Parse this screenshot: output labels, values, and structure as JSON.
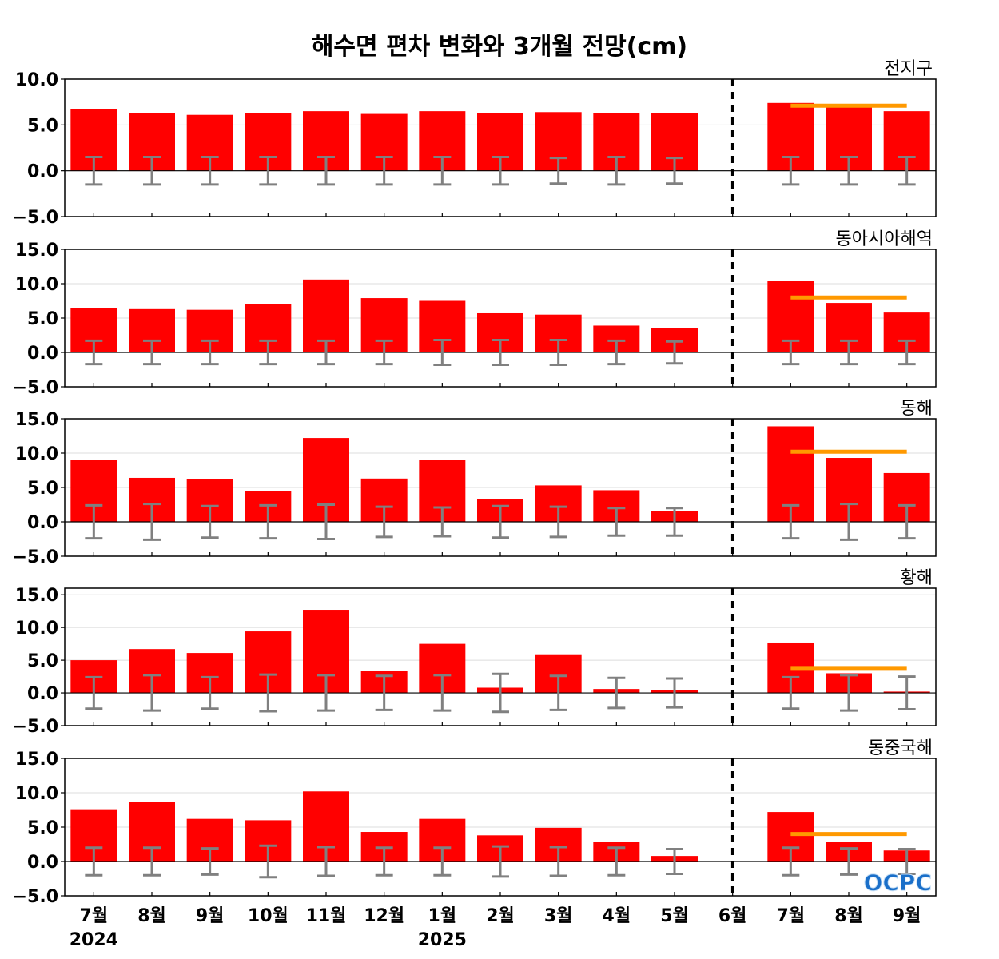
{
  "title": "해수면 편차 변화와 3개월 전망(cm)",
  "logo_text": "OCPC",
  "colors": {
    "bar": "#ff0000",
    "error_bar": "#808080",
    "forecast_line": "#ff9900",
    "divider": "#000000"
  },
  "chart_data": [
    {
      "type": "bar",
      "title": "전지구",
      "categories": [
        "7월",
        "8월",
        "9월",
        "10월",
        "11월",
        "12월",
        "1월",
        "2월",
        "3월",
        "4월",
        "5월",
        "6월",
        "7월",
        "8월",
        "9월"
      ],
      "year_labels": [
        {
          "index": 0,
          "label": "2024"
        },
        {
          "index": 6,
          "label": "2025"
        }
      ],
      "values": [
        6.7,
        6.3,
        6.1,
        6.3,
        6.5,
        6.2,
        6.5,
        6.3,
        6.4,
        6.3,
        6.3,
        0.0,
        7.4,
        7.0,
        6.5
      ],
      "error": [
        1.5,
        1.5,
        1.5,
        1.5,
        1.5,
        1.5,
        1.5,
        1.5,
        1.4,
        1.5,
        1.4,
        null,
        1.5,
        1.5,
        1.5
      ],
      "forecast": {
        "value": 7.1,
        "from": "7월",
        "to": "9월"
      },
      "ylim": [
        -5,
        10
      ],
      "yticks": [
        "10.0",
        "5.0",
        "0.0",
        "−5.0"
      ],
      "divider_after": "5월"
    },
    {
      "type": "bar",
      "title": "동아시아해역",
      "categories": [
        "7월",
        "8월",
        "9월",
        "10월",
        "11월",
        "12월",
        "1월",
        "2월",
        "3월",
        "4월",
        "5월",
        "6월",
        "7월",
        "8월",
        "9월"
      ],
      "values": [
        6.5,
        6.3,
        6.2,
        7.0,
        10.6,
        7.9,
        7.5,
        5.7,
        5.5,
        3.9,
        3.5,
        0.0,
        10.4,
        7.2,
        5.8
      ],
      "error": [
        1.7,
        1.7,
        1.7,
        1.7,
        1.7,
        1.7,
        1.8,
        1.8,
        1.8,
        1.7,
        1.6,
        null,
        1.7,
        1.7,
        1.7
      ],
      "forecast": {
        "value": 8.0,
        "from": "7월",
        "to": "9월"
      },
      "ylim": [
        -5,
        15
      ],
      "yticks": [
        "15.0",
        "10.0",
        "5.0",
        "0.0",
        "−5.0"
      ],
      "divider_after": "5월"
    },
    {
      "type": "bar",
      "title": "동해",
      "categories": [
        "7월",
        "8월",
        "9월",
        "10월",
        "11월",
        "12월",
        "1월",
        "2월",
        "3월",
        "4월",
        "5월",
        "6월",
        "7월",
        "8월",
        "9월"
      ],
      "values": [
        9.0,
        6.4,
        6.2,
        4.5,
        12.2,
        6.3,
        9.0,
        3.3,
        5.3,
        4.6,
        1.6,
        0.0,
        13.9,
        9.3,
        7.1
      ],
      "error": [
        2.4,
        2.6,
        2.3,
        2.4,
        2.5,
        2.2,
        2.1,
        2.3,
        2.2,
        2.0,
        2.0,
        null,
        2.4,
        2.6,
        2.4
      ],
      "forecast": {
        "value": 10.2,
        "from": "7월",
        "to": "9월"
      },
      "ylim": [
        -5,
        15
      ],
      "yticks": [
        "15.0",
        "10.0",
        "5.0",
        "0.0",
        "−5.0"
      ],
      "divider_after": "5월"
    },
    {
      "type": "bar",
      "title": "황해",
      "categories": [
        "7월",
        "8월",
        "9월",
        "10월",
        "11월",
        "12월",
        "1월",
        "2월",
        "3월",
        "4월",
        "5월",
        "6월",
        "7월",
        "8월",
        "9월"
      ],
      "values": [
        5.0,
        6.7,
        6.1,
        9.4,
        12.7,
        3.4,
        7.5,
        0.8,
        5.9,
        0.6,
        0.4,
        0.0,
        7.7,
        3.0,
        0.2
      ],
      "error": [
        2.4,
        2.7,
        2.4,
        2.8,
        2.7,
        2.6,
        2.7,
        2.9,
        2.6,
        2.3,
        2.2,
        null,
        2.4,
        2.7,
        2.5
      ],
      "forecast": {
        "value": 3.8,
        "from": "7월",
        "to": "9월"
      },
      "ylim": [
        -5,
        16
      ],
      "yticks": [
        "15.0",
        "10.0",
        "5.0",
        "0.0",
        "−5.0"
      ],
      "divider_after": "5월"
    },
    {
      "type": "bar",
      "title": "동중국해",
      "categories": [
        "7월",
        "8월",
        "9월",
        "10월",
        "11월",
        "12월",
        "1월",
        "2월",
        "3월",
        "4월",
        "5월",
        "6월",
        "7월",
        "8월",
        "9월"
      ],
      "values": [
        7.6,
        8.7,
        6.2,
        6.0,
        10.2,
        4.3,
        6.2,
        3.8,
        4.9,
        2.9,
        0.8,
        0.0,
        7.2,
        2.9,
        1.6
      ],
      "error": [
        2.0,
        2.0,
        1.9,
        2.3,
        2.1,
        2.0,
        2.0,
        2.2,
        2.1,
        2.0,
        1.8,
        null,
        2.0,
        1.9,
        1.8
      ],
      "forecast": {
        "value": 4.0,
        "from": "7월",
        "to": "9월"
      },
      "ylim": [
        -5,
        15
      ],
      "yticks": [
        "15.0",
        "10.0",
        "5.0",
        "0.0",
        "−5.0"
      ],
      "divider_after": "5월"
    }
  ]
}
